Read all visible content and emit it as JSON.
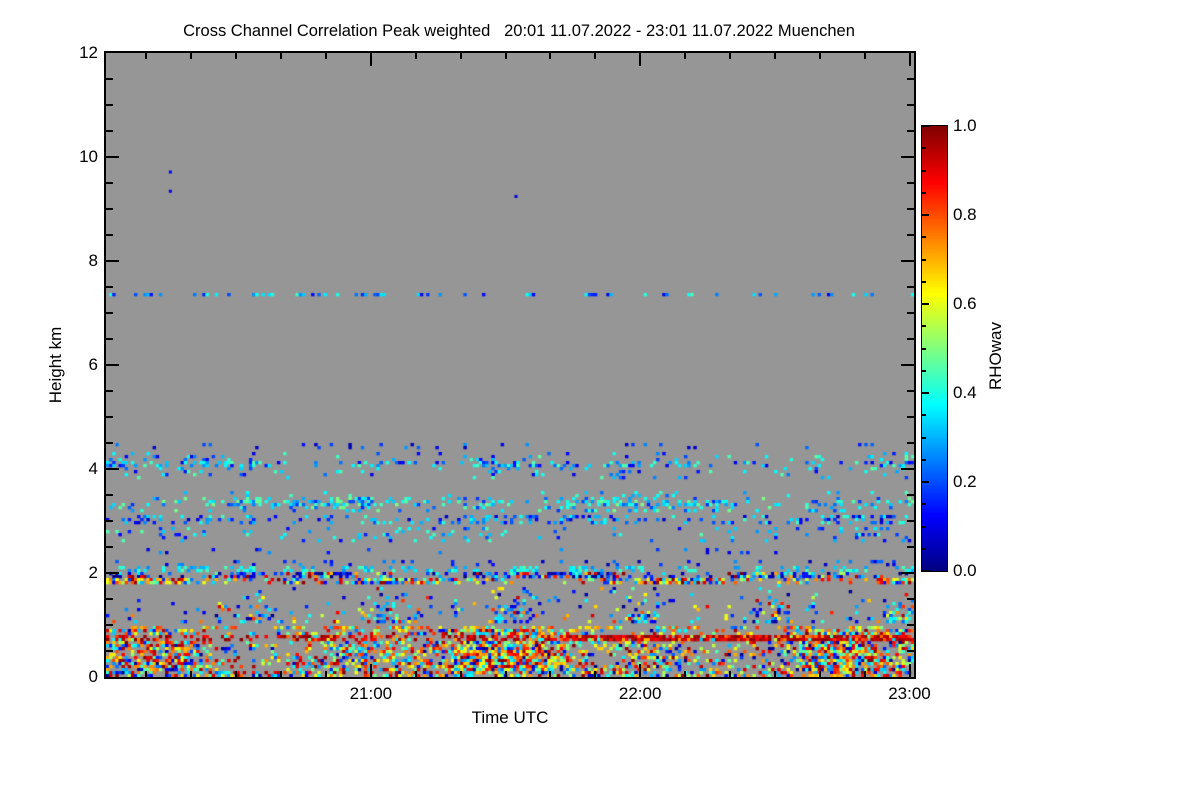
{
  "title": "Cross Channel Correlation Peak weighted   20:01 11.07.2022 - 23:01 11.07.2022 Muenchen",
  "x_axis": {
    "label": "Time UTC",
    "start": "20:01",
    "end": "23:01",
    "duration_minutes": 180,
    "major_ticks": [
      {
        "label": "21:00",
        "minutes": 59
      },
      {
        "label": "22:00",
        "minutes": 119
      },
      {
        "label": "23:00",
        "minutes": 179
      }
    ],
    "minor_tick_every_minutes": 10
  },
  "y_axis": {
    "label": "Height km",
    "range": [
      0,
      12
    ],
    "major_ticks": [
      0,
      2,
      4,
      6,
      8,
      10,
      12
    ],
    "minor_tick_step": 0.5
  },
  "colorbar": {
    "label": "RHOwav",
    "range": [
      0,
      1
    ],
    "tick_labels": [
      "1.0",
      "0.8",
      "0.6",
      "0.4",
      "0.2",
      "0.0"
    ],
    "tick_values": [
      1.0,
      0.8,
      0.6,
      0.4,
      0.2,
      0.0
    ],
    "minor_tick_step": 0.05,
    "colormap": "jet"
  },
  "chart_data": {
    "type": "heatmap",
    "title": "Cross Channel Correlation Peak weighted",
    "time_start": "20:01 11.07.2022",
    "time_end": "23:01 11.07.2022",
    "station": "Muenchen",
    "x_minutes": 180,
    "y_km": [
      0,
      12
    ],
    "value_name": "RHOwav",
    "value_range": [
      0,
      1
    ],
    "colormap": "jet",
    "no_data_color": "#969696",
    "grid": {
      "cols": 260,
      "rows": 208
    },
    "seed": 42,
    "sparse_dots": [
      {
        "minutes": 14,
        "km": 9.74,
        "value": 0.12
      },
      {
        "minutes": 14,
        "km": 9.37,
        "value": 0.1
      },
      {
        "minutes": 91,
        "km": 9.27,
        "value": 0.1
      }
    ],
    "bands": [
      {
        "name": "line-7.35km",
        "km": [
          7.3,
          7.41
        ],
        "density": 0.3,
        "dash": true,
        "freq": 0.35,
        "phase": 3.1,
        "values": [
          [
            0.1,
            0.3,
            0.55
          ],
          [
            0.3,
            0.45,
            0.45
          ]
        ]
      },
      {
        "name": "layer-4.45km",
        "km": [
          4.38,
          4.5
        ],
        "density": 0.055,
        "phase": 0.4,
        "values": [
          [
            0.05,
            0.3,
            1
          ]
        ]
      },
      {
        "name": "layer-4.1km",
        "km": [
          3.82,
          4.35
        ],
        "density": 0.1,
        "clump": true,
        "freq": 0.05,
        "phase": 1.1,
        "peak": {
          "km": [
            4.01,
            4.18
          ],
          "density": 0.3
        },
        "values": [
          [
            0.08,
            0.32,
            0.6
          ],
          [
            0.32,
            0.47,
            0.4
          ]
        ]
      },
      {
        "name": "line-3.5km",
        "km": [
          3.44,
          3.55
        ],
        "density": 0.05,
        "phase": 2.2,
        "values": [
          [
            0.2,
            0.45,
            1
          ]
        ]
      },
      {
        "name": "layer-3.3km",
        "km": [
          3.15,
          3.44
        ],
        "density": 0.2,
        "clump": true,
        "freq": 0.06,
        "phase": 4.0,
        "peak": {
          "km": [
            3.26,
            3.38
          ],
          "density": 0.44
        },
        "values": [
          [
            0.16,
            0.34,
            0.45
          ],
          [
            0.34,
            0.5,
            0.55
          ]
        ]
      },
      {
        "name": "layer-3.0km",
        "km": [
          2.94,
          3.1
        ],
        "density": 0.28,
        "clump": true,
        "freq": 0.055,
        "phase": 0.9,
        "values": [
          [
            0.06,
            0.3,
            0.6
          ],
          [
            0.3,
            0.44,
            0.4
          ]
        ]
      },
      {
        "name": "layer-2.8km",
        "km": [
          2.6,
          2.9
        ],
        "density": 0.11,
        "clump": true,
        "freq": 0.05,
        "phase": 2.6,
        "values": [
          [
            0.1,
            0.32,
            0.6
          ],
          [
            0.32,
            0.46,
            0.4
          ]
        ]
      },
      {
        "name": "layer-2.45km",
        "km": [
          2.37,
          2.5
        ],
        "density": 0.05,
        "phase": 1.8,
        "values": [
          [
            0.06,
            0.3,
            1
          ]
        ]
      },
      {
        "name": "layer-2.2km",
        "km": [
          2.13,
          2.26
        ],
        "density": 0.09,
        "phase": 0.2,
        "values": [
          [
            0.04,
            0.3,
            1
          ]
        ]
      },
      {
        "name": "line-2.1km",
        "km": [
          2.04,
          2.13
        ],
        "density": 0.32,
        "dash": true,
        "freq": 0.35,
        "phase": 5.1,
        "values": [
          [
            0.26,
            0.46,
            1
          ]
        ]
      },
      {
        "name": "line-2.0km",
        "km": [
          1.9,
          2.04
        ],
        "density": 0.55,
        "clump": true,
        "freq": 0.08,
        "phase": 2.9,
        "values": [
          [
            0.0,
            0.18,
            0.5
          ],
          [
            0.18,
            0.4,
            0.25
          ],
          [
            0.4,
            0.7,
            0.08
          ],
          [
            0.7,
            0.85,
            0.08
          ],
          [
            0.85,
            1.0,
            0.09
          ]
        ]
      },
      {
        "name": "line-1.85km",
        "km": [
          1.78,
          1.9
        ],
        "density": 0.62,
        "clump": true,
        "freq": 0.07,
        "phase": 1.4,
        "values": [
          [
            0.55,
            0.72,
            0.3
          ],
          [
            0.72,
            0.92,
            0.2
          ],
          [
            0.3,
            0.55,
            0.18
          ],
          [
            0.08,
            0.3,
            0.22
          ],
          [
            0.92,
            1.0,
            0.1
          ]
        ]
      },
      {
        "name": "layer-1.1-1.8km",
        "km": [
          1.02,
          1.78
        ],
        "density": 0.36,
        "plume": true,
        "freq": 0.15,
        "phase": 0.8,
        "fade_top": true,
        "left_fade_cols": 35,
        "values": [
          [
            0.08,
            0.3,
            0.4
          ],
          [
            0.3,
            0.47,
            0.25
          ],
          [
            0.55,
            0.72,
            0.13
          ],
          [
            0.72,
            0.95,
            0.12
          ],
          [
            0.0,
            0.08,
            0.1
          ]
        ]
      },
      {
        "name": "line-0.95km",
        "km": [
          0.9,
          1.0
        ],
        "density": 0.46,
        "dash": true,
        "freq": 0.3,
        "phase": 3.7,
        "values": [
          [
            0.6,
            0.85,
            0.6
          ],
          [
            0.45,
            0.6,
            0.2
          ],
          [
            0.2,
            0.45,
            0.2
          ]
        ]
      },
      {
        "name": "line-0.75km",
        "km": [
          0.7,
          0.79
        ],
        "density": 0.6,
        "clump": true,
        "freq": 0.09,
        "phase": 1.9,
        "solid_after_col": 150,
        "solid_density": 0.93,
        "values": [
          [
            0.86,
            1.0,
            0.7
          ],
          [
            0.7,
            0.86,
            0.18
          ],
          [
            0.3,
            0.6,
            0.12
          ]
        ]
      },
      {
        "name": "layer-main",
        "km": [
          0.1,
          0.9
        ],
        "density": 0.74,
        "clump": true,
        "freq": 0.045,
        "phase": 2.3,
        "top_fade": 0.22,
        "values": [
          [
            0.78,
            1.0,
            0.27
          ],
          [
            0.6,
            0.78,
            0.22
          ],
          [
            0.45,
            0.6,
            0.14
          ],
          [
            0.25,
            0.45,
            0.2
          ],
          [
            0.0,
            0.25,
            0.17
          ]
        ]
      },
      {
        "name": "layer-ground",
        "km": [
          0.0,
          0.1
        ],
        "density": 0.5,
        "phase": 0.5,
        "values": [
          [
            0.78,
            1.0,
            0.25
          ],
          [
            0.6,
            0.78,
            0.2
          ],
          [
            0.45,
            0.6,
            0.15
          ],
          [
            0.25,
            0.45,
            0.22
          ],
          [
            0.0,
            0.25,
            0.18
          ]
        ]
      }
    ]
  }
}
